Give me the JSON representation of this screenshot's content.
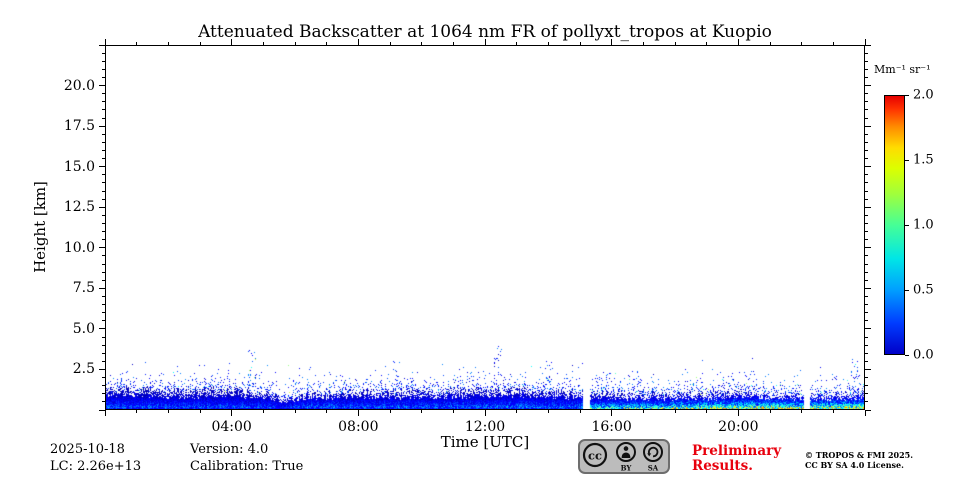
{
  "title": "Attenuated Backscatter at 1064 nm FR of pollyxt_tropos at Kuopio",
  "axes": {
    "xlabel": "Time [UTC]",
    "ylabel": "Height [km]"
  },
  "footer": {
    "date": "2025-10-18",
    "lc": "LC: 2.26e+13",
    "version": "Version: 4.0",
    "calibration": "Calibration: True",
    "preliminary": "Preliminary Results.",
    "copyright_line1": "© TROPOS & FMI 2025.",
    "copyright_line2": "CC BY SA 4.0 License.",
    "cc": {
      "cc": "cc",
      "by": "BY",
      "sa": "SA"
    }
  },
  "colors": {
    "preliminary_text": "#e8000d",
    "axis": "#000000",
    "background": "#ffffff"
  },
  "chart_data": {
    "type": "heatmap",
    "title": "Attenuated Backscatter at 1064 nm FR of pollyxt_tropos at Kuopio",
    "xlabel": "Time [UTC]",
    "ylabel": "Height [km]",
    "x_range_hours": [
      0,
      24
    ],
    "x_tick_hours": [
      4,
      8,
      12,
      16,
      20
    ],
    "x_tick_labels": [
      "04:00",
      "08:00",
      "12:00",
      "16:00",
      "20:00"
    ],
    "ylim_km": [
      0,
      22.5
    ],
    "y_ticks_km": [
      2.5,
      5.0,
      7.5,
      10.0,
      12.5,
      15.0,
      17.5,
      20.0
    ],
    "grid": false,
    "colorbar": {
      "unit": "Mm⁻¹ sr⁻¹",
      "range": [
        0,
        2
      ],
      "ticks": [
        0.0,
        0.5,
        1.0,
        1.5,
        2.0
      ],
      "colormap": "jet",
      "position": "right",
      "stops": [
        [
          0.0,
          "#0000c8"
        ],
        [
          0.12,
          "#003cff"
        ],
        [
          0.25,
          "#00a0ff"
        ],
        [
          0.37,
          "#00e6e6"
        ],
        [
          0.5,
          "#46ff96"
        ],
        [
          0.62,
          "#a0ff3c"
        ],
        [
          0.72,
          "#dcff00"
        ],
        [
          0.8,
          "#ffdc00"
        ],
        [
          0.88,
          "#ff8c00"
        ],
        [
          0.95,
          "#ff3200"
        ],
        [
          1.0,
          "#e60000"
        ]
      ]
    },
    "data_gaps_hours": [
      [
        15.1,
        15.3
      ],
      [
        22.08,
        22.26
      ]
    ],
    "aerosol_layer": {
      "description": "Dense boundary-layer backscatter below ~1.2 km for the whole day; mostly blue/cyan (0.1-0.5 Mm-1 sr-1) before 15:00 UTC, turning green/yellow (0.8-1.4 Mm-1 sr-1) near the surface after ~15:30 UTC; clear air above ~2.5 km with sparse noise speckle.",
      "top_km": [
        [
          0,
          1.2
        ],
        [
          2,
          1.05
        ],
        [
          4,
          1.15
        ],
        [
          5,
          0.95
        ],
        [
          5.6,
          0.6
        ],
        [
          6.3,
          0.9
        ],
        [
          8,
          1.0
        ],
        [
          10,
          1.05
        ],
        [
          12,
          1.1
        ],
        [
          13,
          1.15
        ],
        [
          14,
          1.0
        ],
        [
          15,
          0.95
        ],
        [
          16,
          0.9
        ],
        [
          18,
          0.85
        ],
        [
          20,
          0.95
        ],
        [
          22,
          0.8
        ],
        [
          24,
          0.95
        ]
      ],
      "surface_value": [
        [
          0,
          0.45
        ],
        [
          5,
          0.42
        ],
        [
          5.6,
          0.3
        ],
        [
          6.3,
          0.45
        ],
        [
          15,
          0.48
        ],
        [
          15.4,
          0.85
        ],
        [
          17,
          0.95
        ],
        [
          19,
          1.1
        ],
        [
          20.5,
          1.25
        ],
        [
          22.5,
          1.15
        ],
        [
          24,
          1.3
        ]
      ],
      "speckle_max_km": 2.4,
      "speckle_spikes": [
        [
          4.6,
          3.6
        ],
        [
          9.2,
          3.0
        ],
        [
          12.4,
          4.0
        ],
        [
          14.0,
          3.0
        ],
        [
          23.7,
          3.2
        ]
      ]
    }
  }
}
